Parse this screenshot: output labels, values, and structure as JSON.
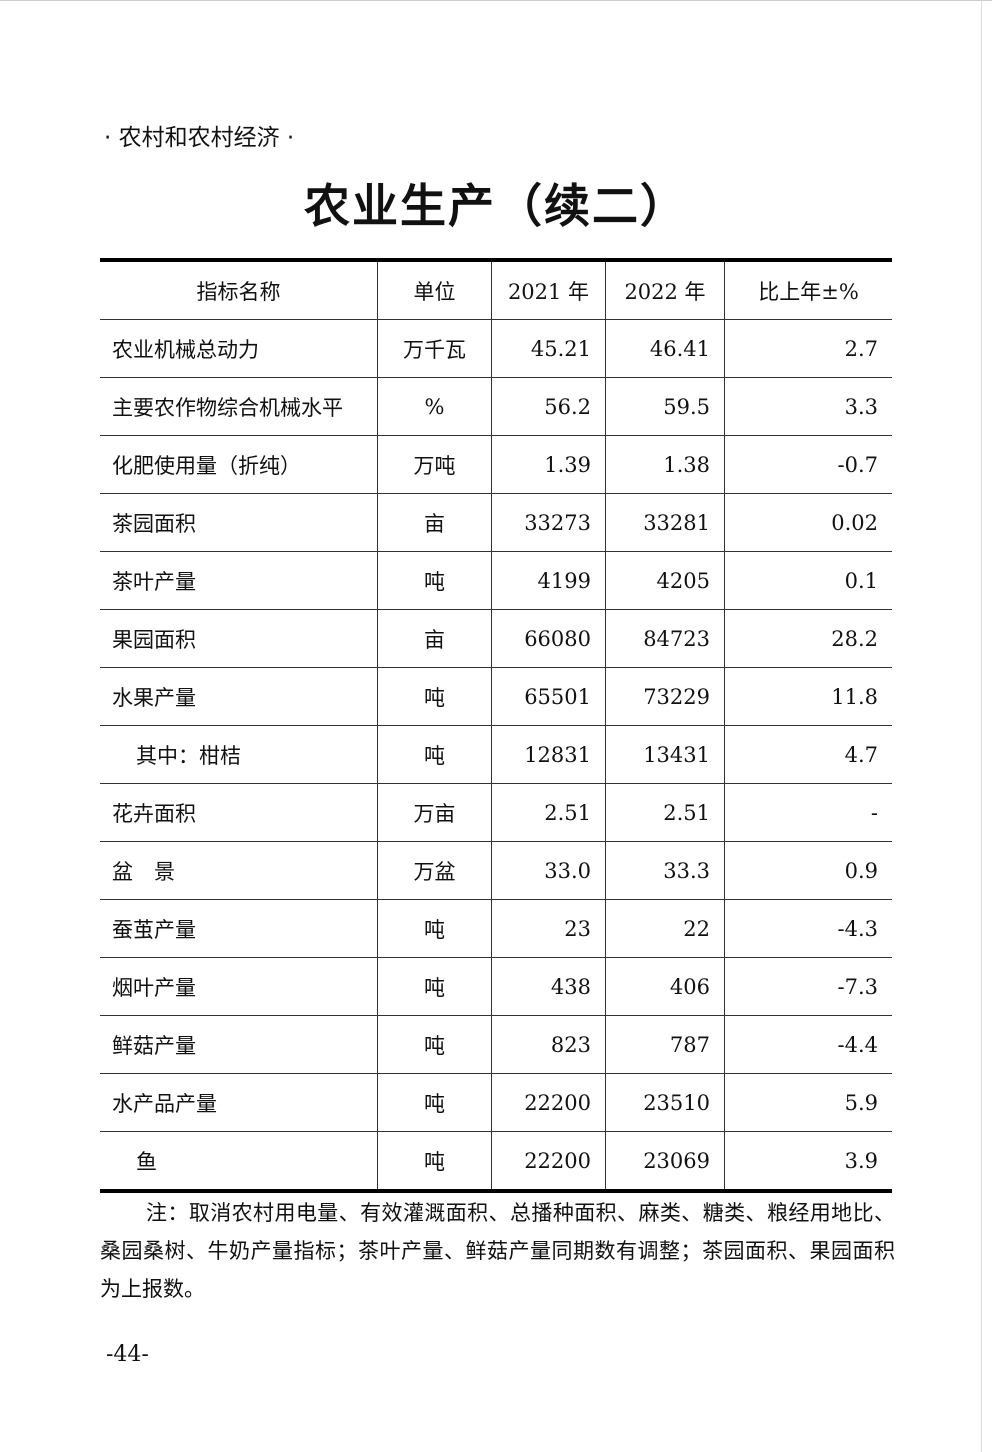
{
  "section": "· 农村和农村经济 ·",
  "title": "农业生产（续二）",
  "table": {
    "headers": [
      "指标名称",
      "单位",
      "2021 年",
      "2022 年",
      "比上年±%"
    ],
    "rows": [
      {
        "name": "农业机械总动力",
        "unit": "万千瓦",
        "y2021": "45.21",
        "y2022": "46.41",
        "change": "2.7"
      },
      {
        "name": "主要农作物综合机械水平",
        "unit": "%",
        "y2021": "56.2",
        "y2022": "59.5",
        "change": "3.3"
      },
      {
        "name": "化肥使用量（折纯）",
        "unit": "万吨",
        "y2021": "1.39",
        "y2022": "1.38",
        "change": "-0.7"
      },
      {
        "name": "茶园面积",
        "unit": "亩",
        "y2021": "33273",
        "y2022": "33281",
        "change": "0.02"
      },
      {
        "name": "茶叶产量",
        "unit": "吨",
        "y2021": "4199",
        "y2022": "4205",
        "change": "0.1"
      },
      {
        "name": "果园面积",
        "unit": "亩",
        "y2021": "66080",
        "y2022": "84723",
        "change": "28.2"
      },
      {
        "name": "水果产量",
        "unit": "吨",
        "y2021": "65501",
        "y2022": "73229",
        "change": "11.8"
      },
      {
        "name": "其中：柑桔",
        "unit": "吨",
        "y2021": "12831",
        "y2022": "13431",
        "change": "4.7",
        "indent": true
      },
      {
        "name": "花卉面积",
        "unit": "万亩",
        "y2021": "2.51",
        "y2022": "2.51",
        "change": "-"
      },
      {
        "name": "盆　景",
        "unit": "万盆",
        "y2021": "33.0",
        "y2022": "33.3",
        "change": "0.9"
      },
      {
        "name": "蚕茧产量",
        "unit": "吨",
        "y2021": "23",
        "y2022": "22",
        "change": "-4.3"
      },
      {
        "name": "烟叶产量",
        "unit": "吨",
        "y2021": "438",
        "y2022": "406",
        "change": "-7.3"
      },
      {
        "name": "鲜菇产量",
        "unit": "吨",
        "y2021": "823",
        "y2022": "787",
        "change": "-4.4"
      },
      {
        "name": "水产品产量",
        "unit": "吨",
        "y2021": "22200",
        "y2022": "23510",
        "change": "5.9"
      },
      {
        "name": "鱼",
        "unit": "吨",
        "y2021": "22200",
        "y2022": "23069",
        "change": "3.9",
        "indent": true
      }
    ]
  },
  "note": "注：取消农村用电量、有效灌溉面积、总播种面积、麻类、糖类、粮经用地比、桑园桑树、牛奶产量指标；茶叶产量、鲜菇产量同期数有调整；茶园面积、果园面积为上报数。",
  "page_number": "-44-"
}
